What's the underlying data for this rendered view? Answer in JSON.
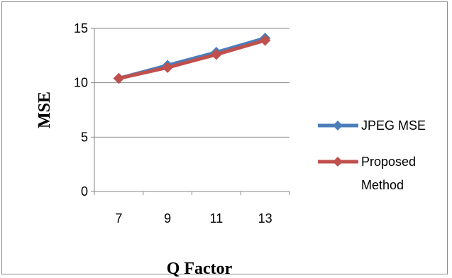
{
  "chart_data": {
    "type": "line",
    "categories": [
      "7",
      "9",
      "11",
      "13"
    ],
    "series": [
      {
        "name": "JPEG MSE",
        "values": [
          10.4,
          11.6,
          12.8,
          14.1
        ],
        "color": "#4a7ebb"
      },
      {
        "name": "Proposed Method",
        "name_lines": [
          "Proposed",
          "Method"
        ],
        "values": [
          10.4,
          11.4,
          12.6,
          13.9
        ],
        "color": "#c0504d"
      }
    ],
    "xlabel": "Q Factor",
    "ylabel": "MSE",
    "ylim": [
      0,
      15
    ],
    "yticks": [
      "0",
      "5",
      "10",
      "15"
    ],
    "grid": "horizontal",
    "legend": "right"
  }
}
